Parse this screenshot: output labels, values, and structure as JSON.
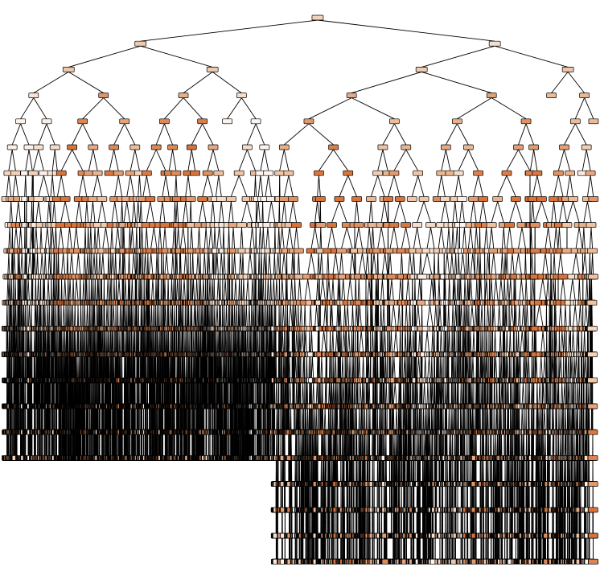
{
  "diagram": {
    "type": "decision-tree",
    "render_style": "sklearn-plot_tree-filled",
    "node_text_legible": false,
    "max_depth_visible": 21,
    "leaf_depth_seed": 20240613,
    "colors": {
      "edge": "#000000",
      "background": "#ffffff",
      "node_low": "#fdf4ee",
      "node_mid": "#eec3a3",
      "node_high": "#d9733a"
    }
  }
}
